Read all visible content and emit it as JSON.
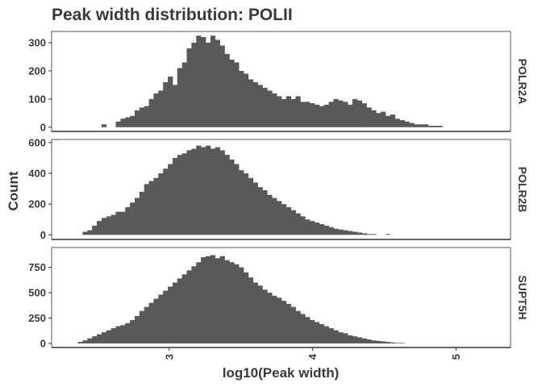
{
  "chart_data": {
    "type": "bar",
    "title": "Peak width distribution: POLII",
    "xlabel": "log10(Peak width)",
    "ylabel": "Count",
    "x_ticks": [
      3,
      4,
      5
    ],
    "xlim": [
      2.18,
      5.38
    ],
    "bin_width": 0.033,
    "bin_start": 2.33,
    "grid": false,
    "legend": "none",
    "bar_color": "#595959",
    "panels": [
      {
        "name": "POLR2A",
        "ylim": [
          -15,
          340
        ],
        "y_ticks": [
          0,
          100,
          200,
          300
        ],
        "values": [
          0,
          0,
          0,
          0,
          0,
          0,
          10,
          0,
          0,
          20,
          30,
          35,
          40,
          60,
          70,
          75,
          100,
          120,
          130,
          160,
          180,
          150,
          210,
          230,
          280,
          300,
          325,
          320,
          300,
          325,
          310,
          290,
          260,
          240,
          230,
          200,
          190,
          170,
          160,
          150,
          140,
          130,
          120,
          110,
          100,
          110,
          100,
          110,
          90,
          90,
          85,
          80,
          75,
          80,
          90,
          100,
          95,
          90,
          80,
          100,
          95,
          85,
          70,
          60,
          50,
          55,
          40,
          45,
          30,
          25,
          20,
          15,
          10,
          10,
          10,
          5,
          5,
          5,
          0,
          0,
          0,
          0,
          0,
          0,
          0,
          0,
          0,
          0,
          0,
          0,
          0,
          0,
          0,
          0,
          0,
          0,
          0,
          0,
          0,
          0,
          0,
          0,
          0,
          0,
          0,
          0,
          0,
          0,
          0,
          0,
          0
        ]
      },
      {
        "name": "POLR2B",
        "ylim": [
          -30,
          620
        ],
        "y_ticks": [
          0,
          200,
          400,
          600
        ],
        "values": [
          0,
          0,
          20,
          30,
          60,
          90,
          110,
          120,
          130,
          150,
          150,
          180,
          210,
          240,
          280,
          330,
          350,
          370,
          400,
          430,
          460,
          500,
          520,
          530,
          550,
          560,
          580,
          570,
          580,
          560,
          570,
          550,
          520,
          490,
          460,
          420,
          400,
          370,
          340,
          310,
          290,
          260,
          240,
          220,
          200,
          180,
          160,
          140,
          120,
          100,
          90,
          80,
          70,
          60,
          50,
          40,
          35,
          30,
          25,
          20,
          15,
          10,
          5,
          5,
          0,
          0,
          5,
          0,
          0,
          0,
          0,
          0,
          0,
          0,
          0,
          0,
          0,
          0,
          0,
          0,
          0,
          0,
          0,
          0,
          0,
          0,
          0,
          0,
          0,
          0,
          0,
          0,
          0,
          0,
          0,
          0,
          0
        ]
      },
      {
        "name": "SUPT5H",
        "ylim": [
          -40,
          945
        ],
        "y_ticks": [
          0,
          250,
          500,
          750
        ],
        "values": [
          0,
          15,
          30,
          50,
          70,
          90,
          110,
          130,
          150,
          170,
          180,
          200,
          230,
          270,
          320,
          360,
          400,
          440,
          480,
          520,
          560,
          600,
          640,
          680,
          720,
          760,
          800,
          850,
          860,
          870,
          840,
          860,
          820,
          800,
          780,
          750,
          700,
          650,
          600,
          570,
          530,
          500,
          470,
          450,
          420,
          390,
          360,
          320,
          290,
          260,
          230,
          210,
          190,
          170,
          150,
          130,
          110,
          100,
          80,
          70,
          60,
          50,
          40,
          30,
          25,
          20,
          15,
          10,
          5,
          5,
          0,
          0,
          0,
          0,
          0,
          0,
          0,
          0,
          0,
          0,
          0,
          0,
          0,
          0,
          0,
          0,
          0,
          0,
          0,
          0,
          0
        ]
      }
    ]
  }
}
